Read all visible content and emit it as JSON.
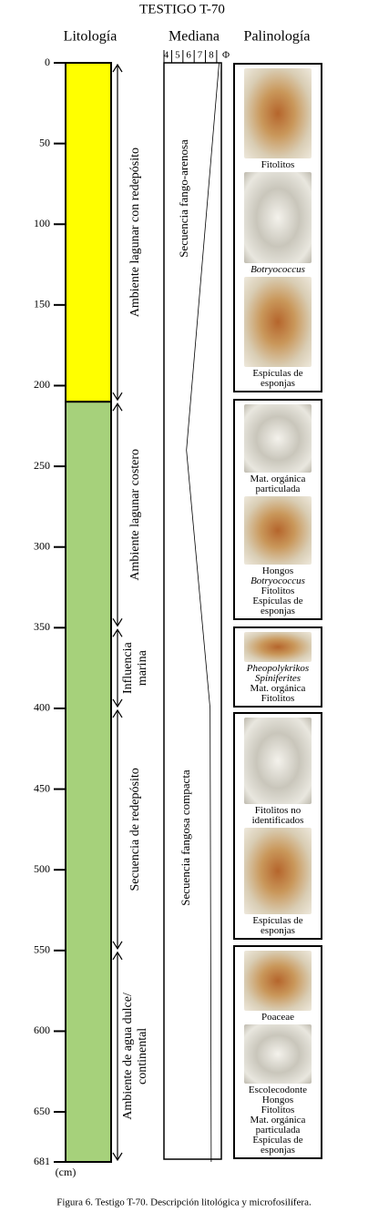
{
  "title": "TESTIGO  T-70",
  "caption": "Figura 6. Testigo T-70. Descripción litológica y microfosilífera.",
  "depth_axis": {
    "lim": [
      0,
      681
    ],
    "ticks": [
      0,
      50,
      100,
      150,
      200,
      250,
      300,
      350,
      400,
      450,
      500,
      550,
      600,
      650,
      681
    ],
    "unit": "(cm)"
  },
  "lithology": {
    "title": "Litología",
    "layers": [
      {
        "top": 0,
        "bottom": 210,
        "color": "#ffff00"
      },
      {
        "top": 210,
        "bottom": 681,
        "color": "#a6d17b"
      }
    ]
  },
  "environments": [
    {
      "lines": [
        "Ambiente lagunar con redepósito"
      ],
      "top": 0,
      "bottom": 210
    },
    {
      "lines": [
        "Ambiente lagunar costero"
      ],
      "top": 210,
      "bottom": 350
    },
    {
      "lines": [
        "Influencia",
        "marina"
      ],
      "top": 350,
      "bottom": 400
    },
    {
      "lines": [
        "Secuencia de redepósito"
      ],
      "top": 400,
      "bottom": 550
    },
    {
      "lines": [
        "Ambiente de agua dulce/",
        "continental"
      ],
      "top": 550,
      "bottom": 681
    }
  ],
  "median": {
    "title": "Mediana",
    "ticks": [
      4,
      5,
      6,
      7,
      8
    ],
    "unit": "Φ",
    "lim": [
      3.8,
      8.9
    ],
    "line": {
      "depth": [
        0,
        240,
        400,
        681
      ],
      "phi": [
        8.7,
        5.8,
        7.9,
        8.0
      ]
    },
    "sequences": [
      "Secuencia fango-arenosa",
      "Secuencia fangosa compacta"
    ]
  },
  "palynology": {
    "title": "Palinología",
    "zones": [
      {
        "top": 0,
        "bottom": 206,
        "items": [
          {
            "lines": [
              "Fitolitos"
            ]
          },
          {
            "lines": [
              {
                "text": "Botryococcus",
                "italic": true
              }
            ]
          },
          {
            "lines": [
              "Espículas de",
              "esponjas"
            ]
          }
        ]
      },
      {
        "top": 208,
        "bottom": 347,
        "items": [
          {
            "lines": [
              "Mat. orgánica",
              "particulada"
            ]
          },
          {
            "lines": [
              "Hongos",
              {
                "text": "Botryococcus",
                "italic": true
              },
              "Fitolitos",
              "Espículas de",
              "esponjas"
            ]
          }
        ]
      },
      {
        "top": 349,
        "bottom": 401,
        "items": [
          {
            "lines": [
              {
                "text": "Pheopolykrikos",
                "italic": true
              },
              {
                "text": "Spiniferites",
                "italic": true
              },
              "Mat. orgánica",
              "Fitolitos"
            ]
          }
        ]
      },
      {
        "top": 402,
        "bottom": 545,
        "items": [
          {
            "lines": [
              "Fitolitos no",
              "identificados"
            ]
          },
          {
            "lines": [
              "Espículas de",
              "esponjas"
            ]
          }
        ]
      },
      {
        "top": 547,
        "bottom": 681,
        "items": [
          {
            "lines": [
              "Poaceae"
            ]
          },
          {
            "lines": [
              "Escolecodonte",
              "Hongos",
              "Fitolitos",
              "Mat. orgánica",
              "particulada",
              "Espículas de",
              "esponjas"
            ]
          }
        ]
      }
    ]
  }
}
